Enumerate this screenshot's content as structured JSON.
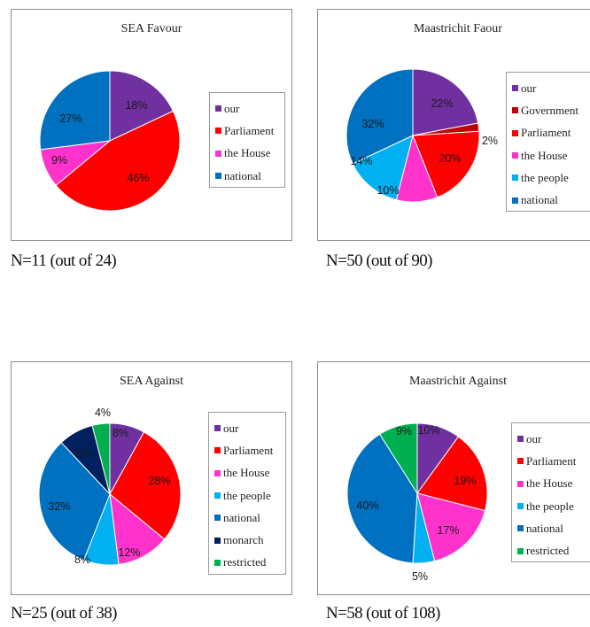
{
  "colors": {
    "our": "#7030a0",
    "Government": "#c00000",
    "Parliament": "#ff0000",
    "the House": "#ff33cc",
    "the people": "#00b0f0",
    "national": "#0070c0",
    "monarch": "#002060",
    "restricted": "#00b050"
  },
  "chart_data": [
    {
      "type": "pie",
      "title": "SEA Favour",
      "caption": "N=11 (out of 24)",
      "slices": [
        {
          "label": "our",
          "value": 18,
          "text": "18%"
        },
        {
          "label": "Parliament",
          "value": 46,
          "text": "46%"
        },
        {
          "label": "the House",
          "value": 9,
          "text": "9%"
        },
        {
          "label": "national",
          "value": 27,
          "text": "27%"
        }
      ],
      "legend": [
        "our",
        "Parliament",
        "the House",
        "national"
      ],
      "legend_position": "right"
    },
    {
      "type": "pie",
      "title": "Maastrichit Faour",
      "caption": "N=50 (out of 90)",
      "slices": [
        {
          "label": "our",
          "value": 22,
          "text": "22%"
        },
        {
          "label": "Government",
          "value": 2,
          "text": "2%"
        },
        {
          "label": "Parliament",
          "value": 20,
          "text": "20%"
        },
        {
          "label": "the House",
          "value": 10,
          "text": "10%"
        },
        {
          "label": "the people",
          "value": 14,
          "text": "14%"
        },
        {
          "label": "national",
          "value": 32,
          "text": "32%"
        }
      ],
      "legend": [
        "our",
        "Government",
        "Parliament",
        "the House",
        "the people",
        "national"
      ],
      "legend_position": "right"
    },
    {
      "type": "pie",
      "title": "SEA Against",
      "caption": "N=25 (out of 38)",
      "slices": [
        {
          "label": "our",
          "value": 8,
          "text": "8%"
        },
        {
          "label": "Parliament",
          "value": 28,
          "text": "28%"
        },
        {
          "label": "the House",
          "value": 12,
          "text": "12%"
        },
        {
          "label": "the people",
          "value": 8,
          "text": "8%"
        },
        {
          "label": "national",
          "value": 32,
          "text": "32%"
        },
        {
          "label": "monarch",
          "value": 8,
          "text": "8%"
        },
        {
          "label": "restricted",
          "value": 4,
          "text": "4%"
        }
      ],
      "legend": [
        "our",
        "Parliament",
        "the House",
        "the people",
        "national",
        "monarch",
        "restricted"
      ],
      "legend_position": "right"
    },
    {
      "type": "pie",
      "title": "Maastrichit Against",
      "caption": "N=58 (out of 108)",
      "slices": [
        {
          "label": "our",
          "value": 10,
          "text": "10%"
        },
        {
          "label": "Parliament",
          "value": 19,
          "text": "19%"
        },
        {
          "label": "the House",
          "value": 17,
          "text": "17%"
        },
        {
          "label": "the people",
          "value": 5,
          "text": "5%"
        },
        {
          "label": "national",
          "value": 40,
          "text": "40%"
        },
        {
          "label": "restricted",
          "value": 9,
          "text": "9%"
        }
      ],
      "legend": [
        "our",
        "Parliament",
        "the House",
        "the people",
        "national",
        "restricted"
      ],
      "legend_position": "right"
    }
  ]
}
